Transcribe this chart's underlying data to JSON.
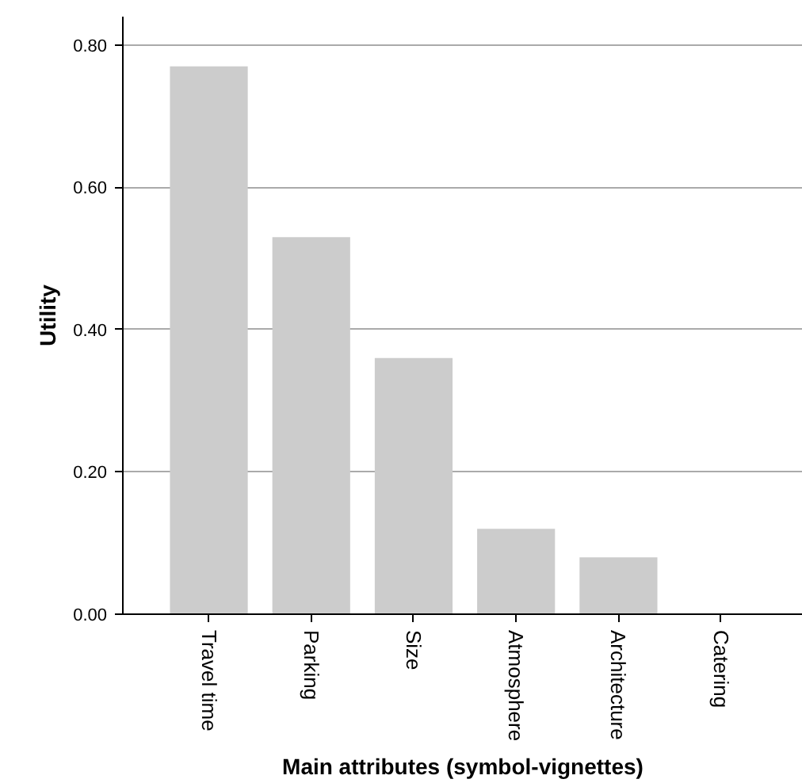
{
  "chart_data": {
    "type": "bar",
    "xlabel": "Main attributes (symbol-vignettes)",
    "ylabel": "Utility",
    "categories": [
      "Travel time",
      "Parking",
      "Size",
      "Atmosphere",
      "Architecture",
      "Catering"
    ],
    "values": [
      0.77,
      0.53,
      0.36,
      0.12,
      0.08,
      0.0
    ],
    "color": "#cccccc",
    "ylim": [
      0,
      0.84
    ],
    "yticks": [
      {
        "value": 0,
        "label": "0.00"
      },
      {
        "value": 0.2,
        "label": "0.20"
      },
      {
        "value": 0.4,
        "label": "0.40"
      },
      {
        "value": 0.6,
        "label": "0.60"
      },
      {
        "value": 0.8,
        "label": "0.80"
      }
    ],
    "grid": "y"
  }
}
